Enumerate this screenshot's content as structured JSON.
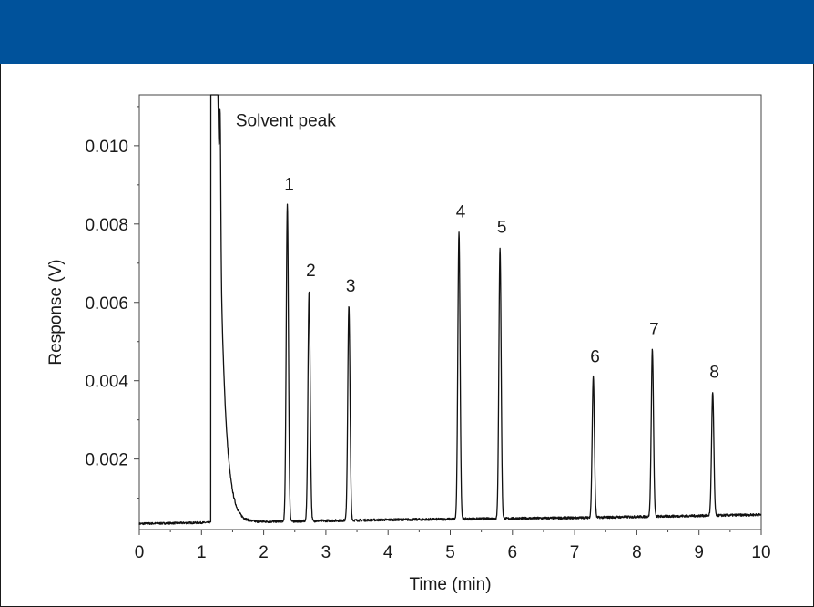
{
  "colors": {
    "header_band": "#00529b",
    "trace": "#111111",
    "axis": "#444444",
    "text": "#1a1a1a"
  },
  "chart_data": {
    "type": "line",
    "xlabel": "Time (min)",
    "ylabel": "Response (V)",
    "xlim": [
      0,
      10
    ],
    "ylim": [
      0.0002,
      0.0113
    ],
    "x_ticks": [
      "0",
      "1",
      "2",
      "3",
      "4",
      "5",
      "6",
      "7",
      "8",
      "9",
      "10"
    ],
    "y_ticks": [
      "0.002",
      "0.004",
      "0.006",
      "0.008",
      "0.010"
    ],
    "grid": false,
    "annotations": [
      {
        "text": "Solvent peak",
        "x": 1.55,
        "y": 0.0105
      }
    ],
    "solvent_peak": {
      "start": 1.15,
      "apex": 1.22,
      "top": 0.0113,
      "shoulder_x": 1.3,
      "shoulder_y": 0.0098
    },
    "baseline": [
      [
        0,
        0.00035
      ],
      [
        1.15,
        0.00038
      ],
      [
        4,
        0.00045
      ],
      [
        7,
        0.0005
      ],
      [
        10,
        0.00058
      ]
    ],
    "peaks": [
      {
        "label": "1",
        "time": 2.38,
        "height": 0.0085
      },
      {
        "label": "2",
        "time": 2.73,
        "height": 0.0063
      },
      {
        "label": "3",
        "time": 3.37,
        "height": 0.0059
      },
      {
        "label": "4",
        "time": 5.14,
        "height": 0.0078
      },
      {
        "label": "5",
        "time": 5.8,
        "height": 0.0074
      },
      {
        "label": "6",
        "time": 7.3,
        "height": 0.0041
      },
      {
        "label": "7",
        "time": 8.25,
        "height": 0.0048
      },
      {
        "label": "8",
        "time": 9.22,
        "height": 0.0037
      }
    ]
  }
}
